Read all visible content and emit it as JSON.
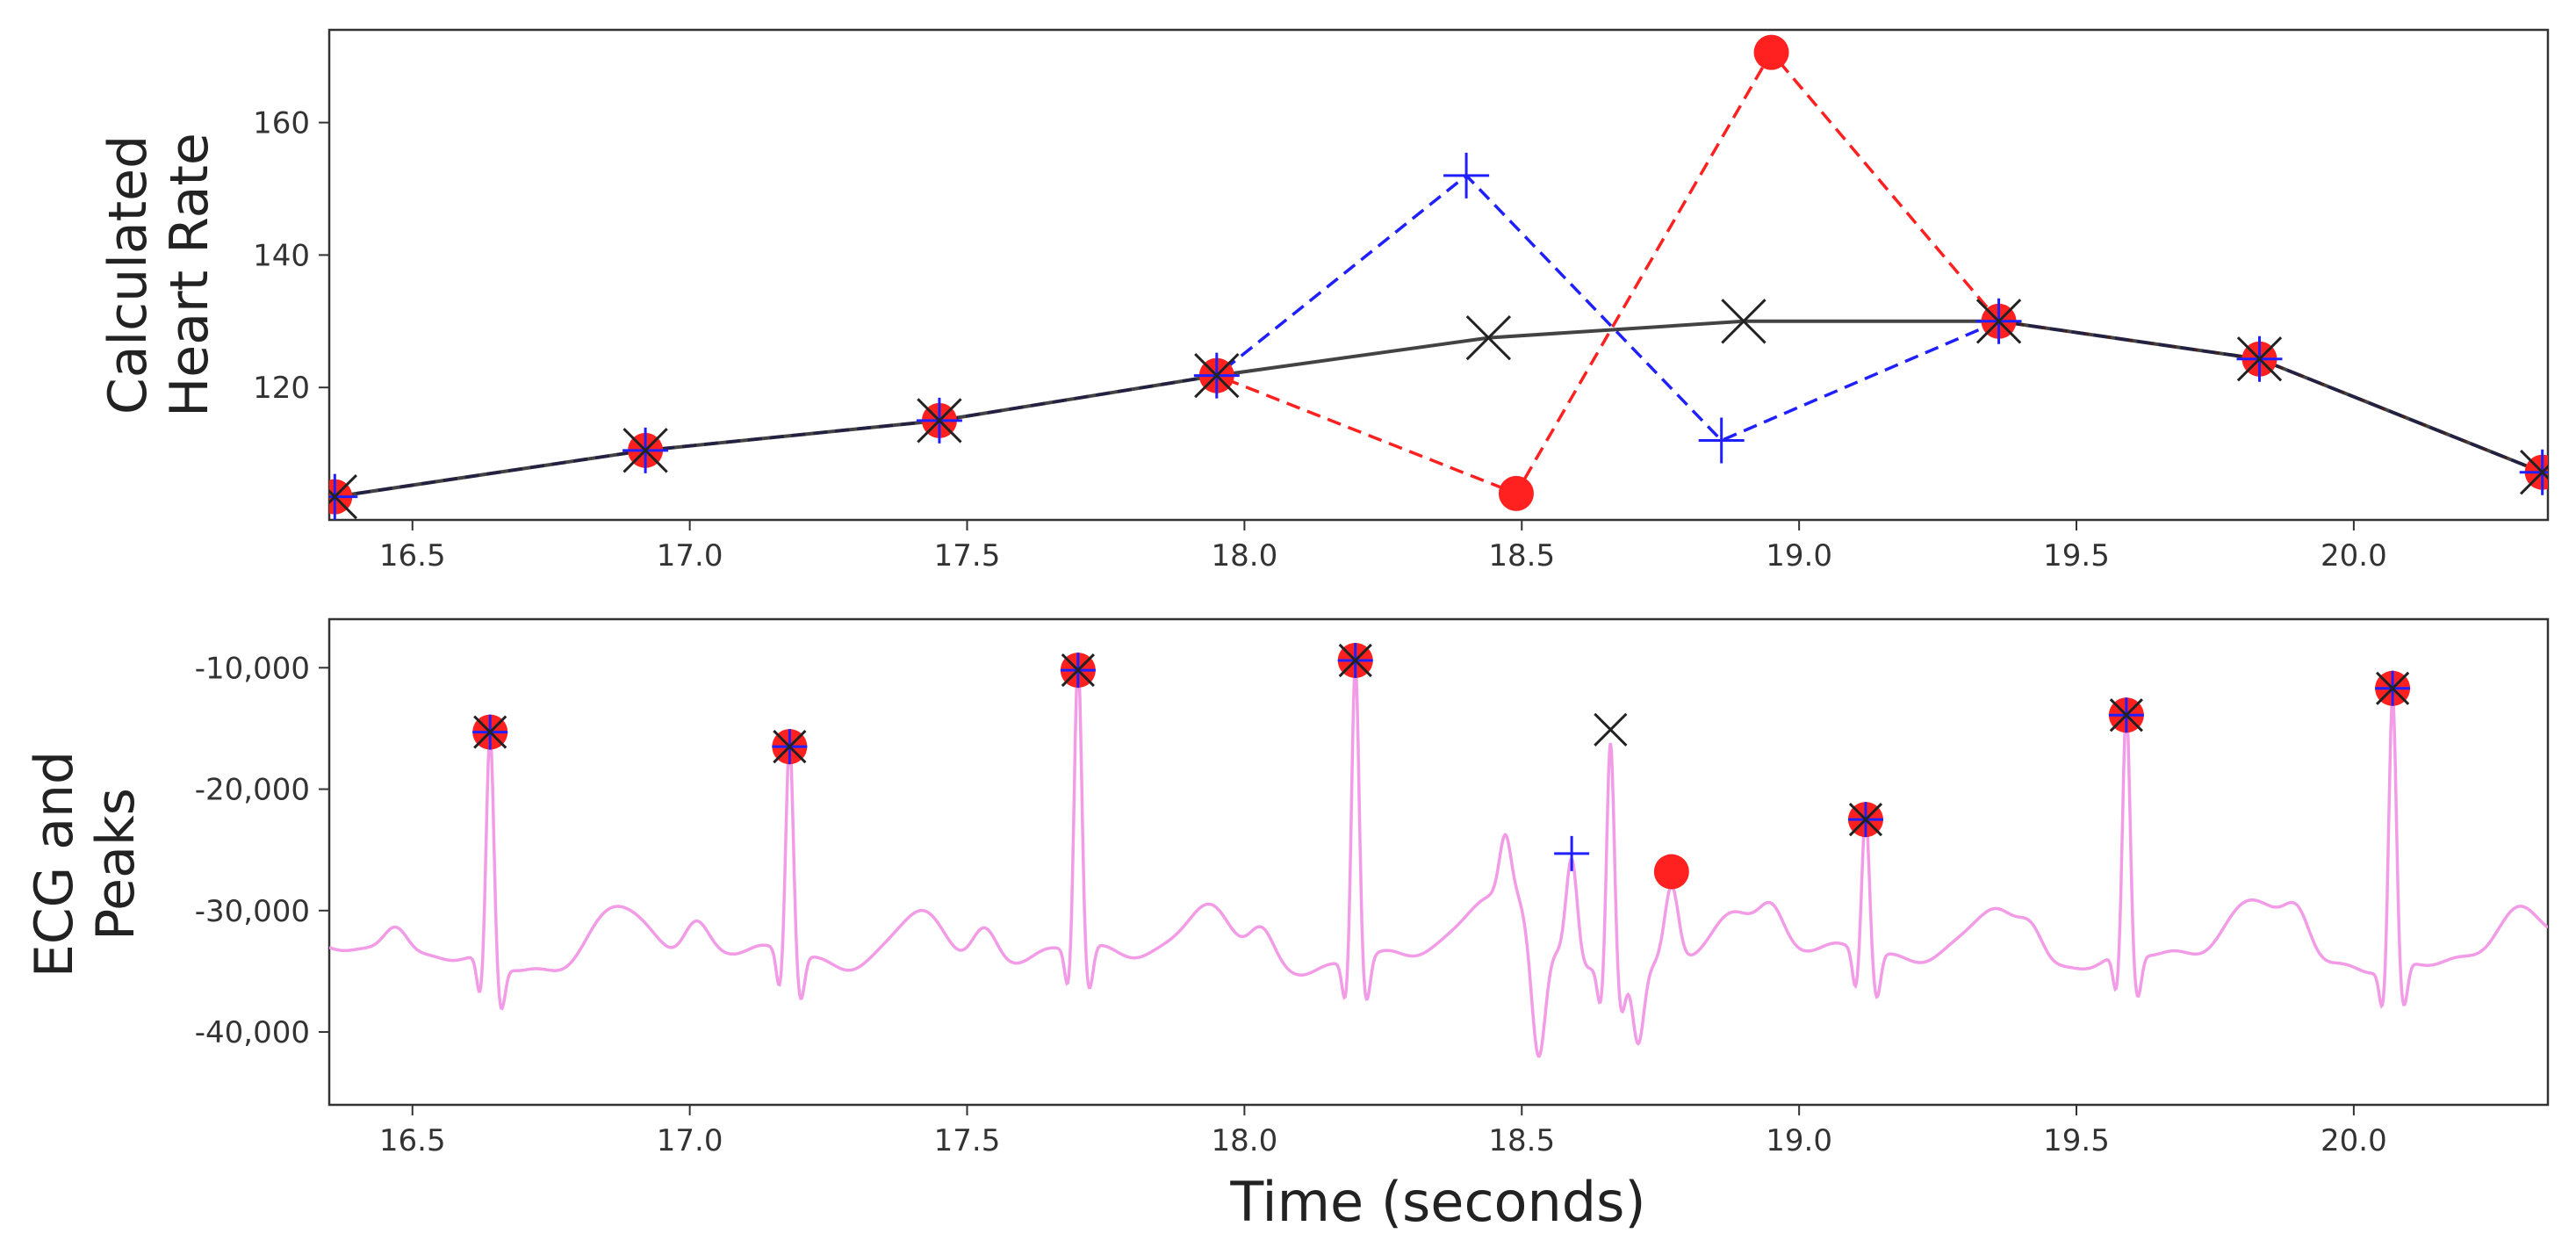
{
  "chart_data": [
    {
      "type": "line",
      "ylabel_lines": [
        "Calculated",
        "Heart Rate"
      ],
      "xlim": [
        16.35,
        20.35
      ],
      "ylim": [
        100,
        174
      ],
      "xticks": [
        16.5,
        17.0,
        17.5,
        18.0,
        18.5,
        19.0,
        19.5,
        20.0
      ],
      "xtick_labels": [
        "16.5",
        "17.0",
        "17.5",
        "18.0",
        "18.5",
        "19.0",
        "19.5",
        "20.0"
      ],
      "yticks": [
        120,
        140,
        160
      ],
      "ytick_labels": [
        "120",
        "140",
        "160"
      ],
      "series": [
        {
          "name": "heart-rate-red",
          "color": "#ff2020",
          "line": "dashed",
          "marker": "circle",
          "x": [
            16.36,
            16.92,
            17.45,
            17.95,
            18.49,
            18.95,
            19.36,
            19.83,
            20.34
          ],
          "y": [
            103.5,
            110.5,
            115.0,
            121.8,
            104.0,
            170.6,
            130.0,
            124.3,
            107.2
          ]
        },
        {
          "name": "heart-rate-blue",
          "color": "#2020ff",
          "line": "dashed",
          "marker": "plus",
          "x": [
            16.36,
            16.92,
            17.45,
            17.95,
            18.4,
            18.86,
            19.36,
            19.83,
            20.34
          ],
          "y": [
            103.5,
            110.5,
            115.0,
            121.8,
            152.0,
            112.0,
            130.0,
            124.3,
            107.2
          ]
        },
        {
          "name": "heart-rate-black",
          "color": "#222222",
          "line": "solid",
          "marker": "x",
          "x": [
            16.36,
            16.92,
            17.45,
            17.95,
            18.44,
            18.9,
            19.36,
            19.83,
            20.34
          ],
          "y": [
            103.5,
            110.5,
            115.0,
            121.8,
            127.5,
            130.0,
            130.0,
            124.3,
            107.2
          ]
        }
      ]
    },
    {
      "type": "line",
      "ylabel_lines": [
        "ECG and",
        "Peaks"
      ],
      "xlabel": "Time (seconds)",
      "xlim": [
        16.35,
        20.35
      ],
      "ylim": [
        -46000,
        -6000
      ],
      "xticks": [
        16.5,
        17.0,
        17.5,
        18.0,
        18.5,
        19.0,
        19.5,
        20.0
      ],
      "xtick_labels": [
        "16.5",
        "17.0",
        "17.5",
        "18.0",
        "18.5",
        "19.0",
        "19.5",
        "20.0"
      ],
      "yticks": [
        -10000,
        -20000,
        -30000,
        -40000
      ],
      "ytick_labels": [
        "-10,000",
        "-20,000",
        "-30,000",
        "-40,000"
      ],
      "ecg": {
        "color": "#f29be6",
        "baseline": -34000,
        "beats": [
          16.64,
          17.18,
          17.7,
          18.2,
          18.66,
          19.12,
          19.59,
          20.07
        ],
        "amplitudes": [
          -15300,
          -16500,
          -10200,
          -9400,
          -15500,
          -22500,
          -13900,
          -11700
        ]
      },
      "peaks_red": {
        "color": "#ff2020",
        "marker": "circle",
        "x": [
          16.64,
          17.18,
          17.7,
          18.2,
          18.77,
          19.12,
          19.59,
          20.07
        ],
        "y": [
          -15300,
          -16500,
          -10200,
          -9400,
          -26800,
          -22500,
          -13900,
          -11700
        ]
      },
      "peaks_blue": {
        "color": "#2020ff",
        "marker": "plus",
        "x": [
          16.64,
          17.18,
          17.7,
          18.2,
          18.59,
          19.12,
          19.59,
          20.07
        ],
        "y": [
          -15300,
          -16500,
          -10200,
          -9400,
          -25300,
          -22500,
          -13900,
          -11700
        ]
      },
      "peaks_black": {
        "color": "#222222",
        "marker": "x",
        "x": [
          16.64,
          17.18,
          17.7,
          18.2,
          18.66,
          19.12,
          19.59,
          20.07
        ],
        "y": [
          -15300,
          -16500,
          -10200,
          -9400,
          -15100,
          -22500,
          -13900,
          -11700
        ]
      }
    }
  ]
}
